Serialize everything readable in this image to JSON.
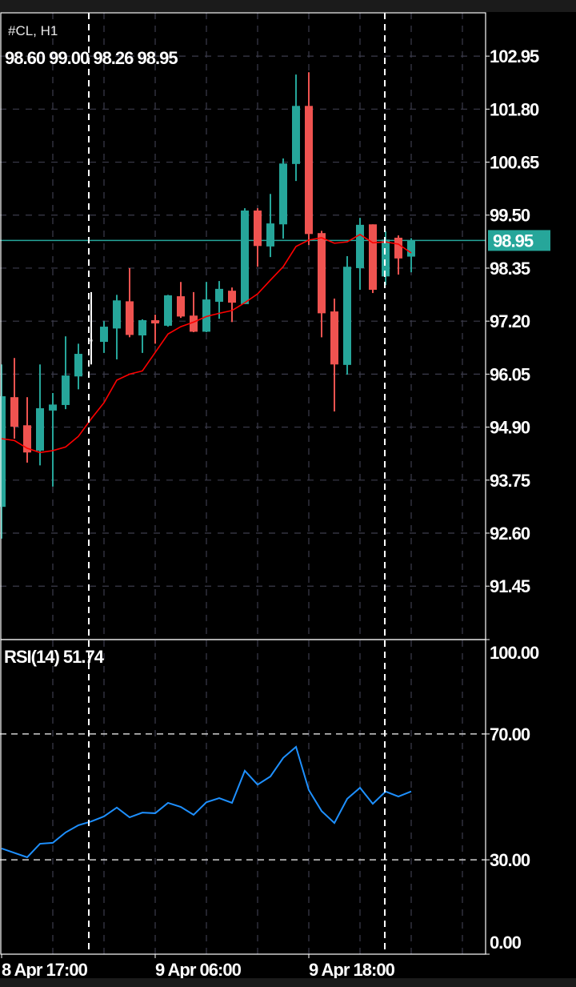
{
  "header": {
    "symbol": "#CL, H1",
    "ohlc": "98.60 99.00 98.26 98.95"
  },
  "colors": {
    "bull": "#26a69a",
    "bear": "#ef5350",
    "highlight": "#ffffff",
    "ma": "#ff0000",
    "rsi": "#1e90ff",
    "current_price_badge": "#26a69a",
    "grid": "#3c3c4c",
    "background": "#000000"
  },
  "chart_data": [
    {
      "type": "candlestick",
      "title": "#CL, H1",
      "ylim": [
        90.29,
        103.89
      ],
      "yticks": [
        "102.95",
        "101.80",
        "100.65",
        "99.50",
        "98.35",
        "97.20",
        "96.05",
        "94.90",
        "93.75",
        "92.60",
        "91.45"
      ],
      "current_price": "98.95",
      "xticks": [
        {
          "index": 0,
          "label": "8 Apr 17:00"
        },
        {
          "index": 12,
          "label": "9 Apr 06:00"
        },
        {
          "index": 24,
          "label": "9 Apr 18:00"
        }
      ],
      "grid": true,
      "highlighted_index": 7,
      "candles": [
        [
          93.17,
          96.26,
          92.48,
          95.57
        ],
        [
          95.55,
          96.4,
          94.65,
          94.91
        ],
        [
          94.94,
          95.55,
          94.13,
          94.35
        ],
        [
          94.39,
          96.26,
          94.07,
          95.31
        ],
        [
          95.26,
          95.64,
          93.61,
          95.39
        ],
        [
          95.38,
          96.87,
          95.29,
          96.02
        ],
        [
          96.0,
          96.71,
          95.72,
          96.49
        ],
        [
          96.76,
          97.83,
          96.26,
          96.8
        ],
        [
          96.75,
          97.2,
          96.51,
          97.08
        ],
        [
          97.04,
          97.77,
          96.37,
          97.65
        ],
        [
          97.63,
          98.35,
          96.85,
          96.9
        ],
        [
          96.89,
          97.24,
          96.51,
          97.22
        ],
        [
          97.22,
          97.34,
          96.71,
          97.15
        ],
        [
          97.1,
          97.77,
          97.08,
          97.76
        ],
        [
          97.74,
          98.05,
          97.27,
          97.3
        ],
        [
          97.32,
          97.83,
          96.96,
          96.97
        ],
        [
          96.97,
          98.05,
          96.96,
          97.67
        ],
        [
          97.62,
          98.07,
          97.25,
          97.9
        ],
        [
          97.86,
          97.93,
          97.18,
          97.6
        ],
        [
          97.57,
          99.65,
          97.57,
          99.6
        ],
        [
          99.6,
          99.65,
          98.38,
          98.83
        ],
        [
          98.82,
          99.96,
          98.59,
          99.32
        ],
        [
          99.3,
          100.73,
          98.99,
          100.62
        ],
        [
          100.61,
          102.55,
          100.24,
          101.87
        ],
        [
          101.87,
          102.6,
          98.85,
          99.09
        ],
        [
          99.11,
          99.16,
          96.85,
          97.37
        ],
        [
          97.41,
          97.69,
          95.24,
          96.26
        ],
        [
          96.25,
          98.61,
          96.04,
          98.38
        ],
        [
          98.35,
          99.44,
          97.88,
          99.29
        ],
        [
          99.3,
          99.3,
          97.81,
          97.88
        ],
        [
          98.17,
          99.15,
          97.98,
          98.97
        ],
        [
          99.01,
          99.06,
          98.21,
          98.56
        ],
        [
          98.6,
          99.0,
          98.26,
          98.95
        ]
      ],
      "moving_average": [
        94.65,
        94.61,
        94.44,
        94.35,
        94.39,
        94.47,
        94.7,
        95.08,
        95.43,
        95.92,
        96.05,
        96.12,
        96.52,
        96.92,
        97.08,
        97.18,
        97.3,
        97.37,
        97.43,
        97.6,
        97.79,
        98.09,
        98.38,
        98.82,
        98.96,
        99.01,
        98.89,
        98.92,
        99.08,
        98.9,
        98.92,
        98.87,
        98.68
      ]
    },
    {
      "type": "line",
      "title": "RSI(14) 51.74",
      "ylim": [
        0,
        100
      ],
      "yticks": [
        "100.00",
        "70.00",
        "30.00",
        "0.00"
      ],
      "levels": [
        70,
        30
      ],
      "values": [
        33.6,
        32.2,
        30.8,
        35.1,
        35.4,
        38.7,
        41.0,
        42.2,
        43.8,
        46.6,
        43.5,
        45.0,
        44.8,
        48.1,
        46.8,
        44.3,
        48.3,
        49.6,
        48.1,
        58.3,
        53.9,
        56.5,
        62.4,
        65.9,
        52.2,
        45.5,
        41.7,
        49.4,
        52.9,
        47.8,
        51.7,
        50.1,
        51.74
      ]
    }
  ]
}
